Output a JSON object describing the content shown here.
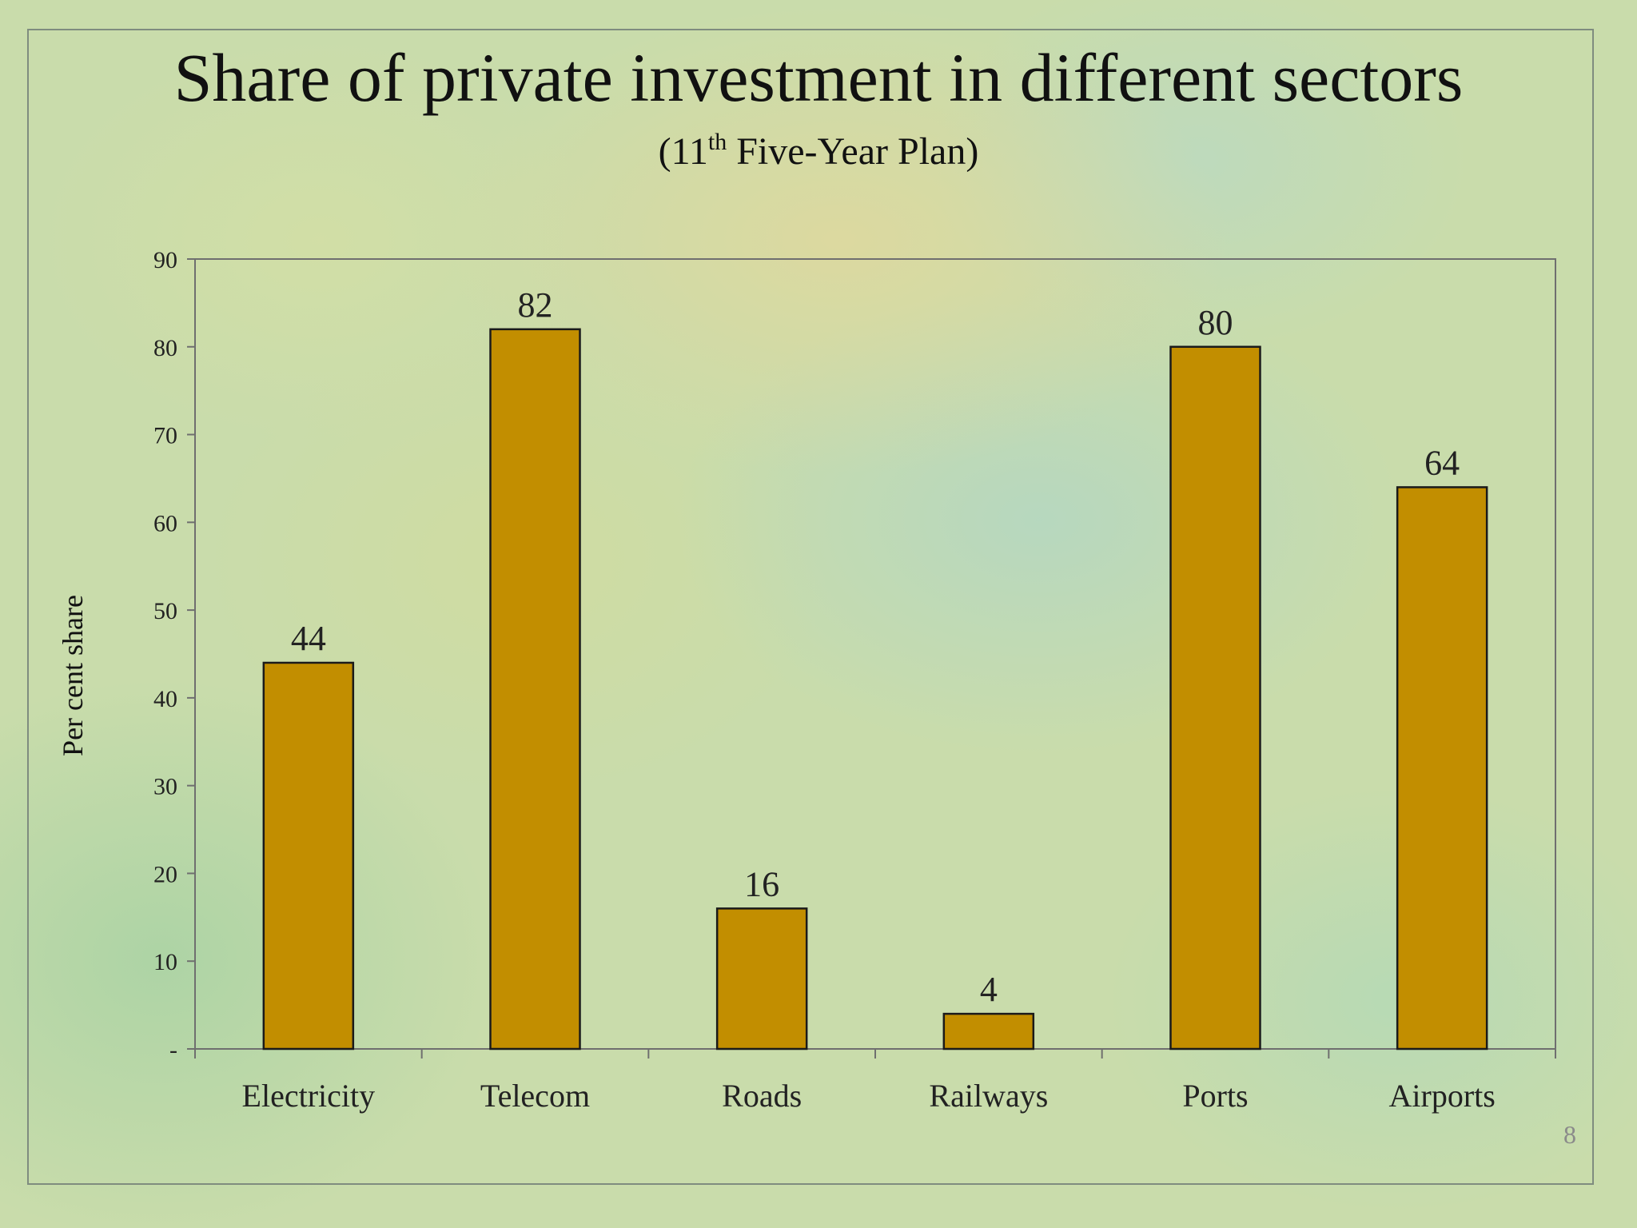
{
  "slide": {
    "page_number": "8"
  },
  "chart_data": {
    "type": "bar",
    "title": "Share of private investment in different sectors",
    "subtitle": {
      "prefix": "(11",
      "superscript": "th",
      "suffix": " Five-Year Plan)"
    },
    "xlabel": "",
    "ylabel": "Per cent share",
    "categories": [
      "Electricity",
      "Telecom",
      "Roads",
      "Railways",
      "Ports",
      "Airports"
    ],
    "values": [
      44,
      82,
      16,
      4,
      80,
      64
    ],
    "data_labels": [
      "44",
      "82",
      "16",
      "4",
      "80",
      "64"
    ],
    "ylim": [
      0,
      90
    ],
    "yticks": [
      0,
      10,
      20,
      30,
      40,
      50,
      60,
      70,
      80,
      90
    ],
    "ytick_labels": [
      "-",
      "10",
      "20",
      "30",
      "40",
      "50",
      "60",
      "70",
      "80",
      "90"
    ],
    "grid": false,
    "legend": "none",
    "colors": {
      "bar_fill": "#C28E00",
      "bar_stroke": "#1a1a1a",
      "axis": "#6f6f6f",
      "text": "#111111"
    }
  }
}
